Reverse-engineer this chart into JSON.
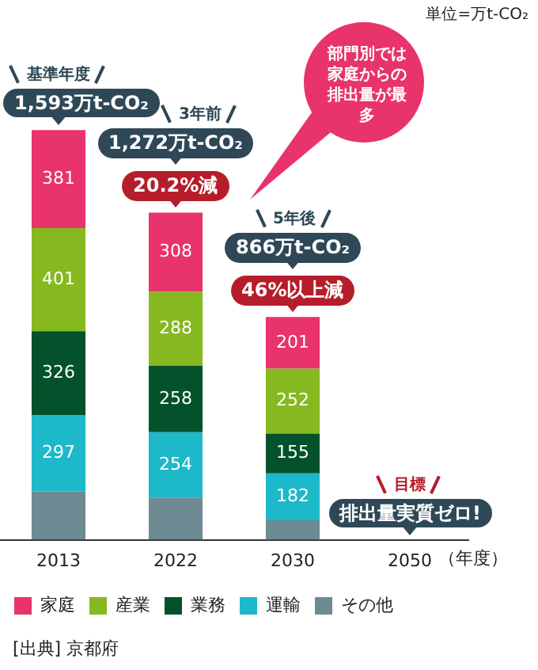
{
  "chart_data": {
    "type": "bar",
    "stacked": true,
    "categories": [
      "2013",
      "2022",
      "2030",
      "2050"
    ],
    "xlabel": "（年度）",
    "series": [
      {
        "name": "その他",
        "color": "#6e8a93",
        "values": [
          188,
          164,
          76,
          0
        ]
      },
      {
        "name": "運輸",
        "color": "#1db8c9",
        "values": [
          297,
          254,
          182,
          0
        ],
        "value_labels": [
          "297",
          "254",
          "182",
          null
        ]
      },
      {
        "name": "業務",
        "color": "#03522b",
        "values": [
          326,
          258,
          155,
          0
        ],
        "value_labels": [
          "326",
          "258",
          "155",
          null
        ]
      },
      {
        "name": "産業",
        "color": "#86b81f",
        "values": [
          401,
          288,
          252,
          0
        ],
        "value_labels": [
          "401",
          "288",
          "252",
          null
        ]
      },
      {
        "name": "家庭",
        "color": "#e8336b",
        "values": [
          381,
          308,
          201,
          0
        ],
        "value_labels": [
          "381",
          "308",
          "201",
          null
        ]
      }
    ],
    "totals": [
      "1,593万t-CO₂",
      "1,272万t-CO₂",
      "866万t-CO₂",
      null
    ],
    "annotations": [
      "基準年度",
      "3年前",
      "20.2%減",
      "5年後",
      "46%以上減",
      "目標",
      "排出量実質ゼロ!",
      "部門別では家庭からの排出量が最多",
      "単位=万t-CO₂",
      "[出典] 京都府"
    ],
    "grid": false,
    "legend": "bottom"
  }
}
